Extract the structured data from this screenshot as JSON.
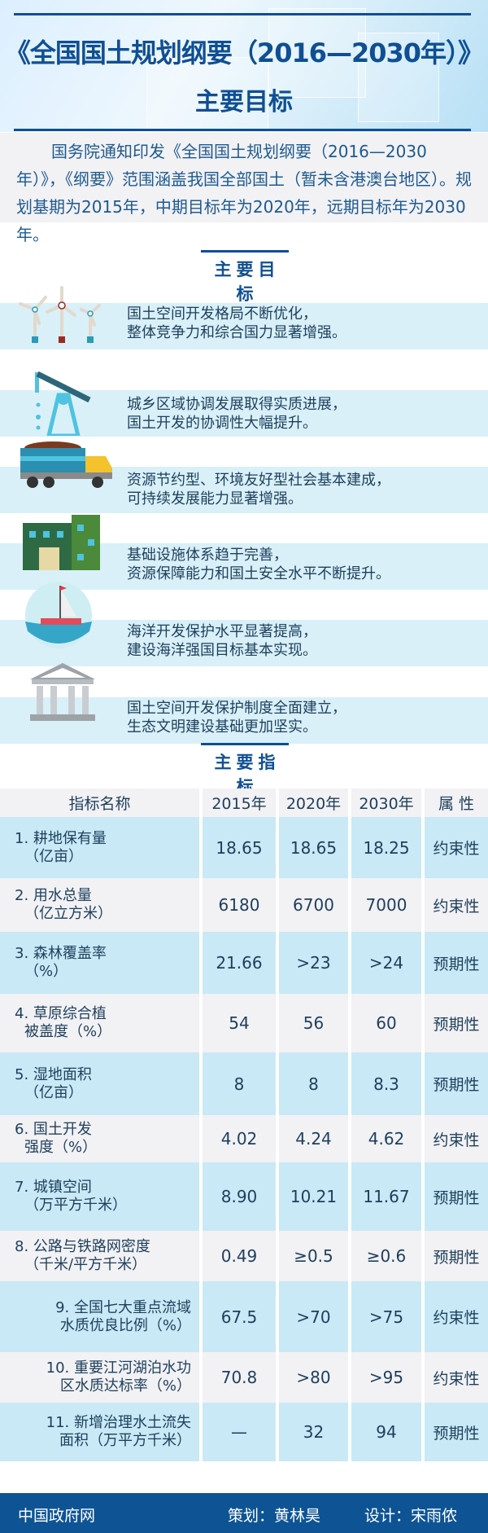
{
  "header": {
    "title": "《全国国土规划纲要（2016—2030年）》",
    "subtitle": "主要目标"
  },
  "intro": "国务院通知印发《全国国土规划纲要（2016—2030年）》，《纲要》范围涵盖我国全部国土（暂未含港澳台地区）。规划基期为2015年，中期目标年为2020年，远期目标年为2030年。",
  "goals_section": {
    "title": "主要目标"
  },
  "goals": [
    {
      "icon": "wind-turbine-icon",
      "line1": "国土空间开发格局不断优化，",
      "line2": "整体竞争力和综合国力显著增强。"
    },
    {
      "icon": "oil-pump-icon",
      "line1": "城乡区域协调发展取得实质进展，",
      "line2": "国土开发的协调性大幅提升。"
    },
    {
      "icon": "truck-icon",
      "line1": "资源节约型、环境友好型社会基本建成，",
      "line2": "可持续发展能力显著增强。"
    },
    {
      "icon": "factory-icon",
      "line1": "基础设施体系趋于完善，",
      "line2": "资源保障能力和国土安全水平不断提升。"
    },
    {
      "icon": "sailboat-icon",
      "line1": "海洋开发保护水平显著提高，",
      "line2": "建设海洋强国目标基本实现。"
    },
    {
      "icon": "government-building-icon",
      "line1": "国土空间开发保护制度全面建立，",
      "line2": "生态文明建设基础更加坚实。"
    }
  ],
  "indicators_section": {
    "title": "主要指标"
  },
  "table": {
    "headers": [
      "指标名称",
      "2015年",
      "2020年",
      "2030年",
      "属 性"
    ],
    "rows": [
      {
        "name1": "1. 耕地保有量",
        "name2": "（亿亩）",
        "v2015": "18.65",
        "v2020": "18.65",
        "v2030": "18.25",
        "attr": "约束性"
      },
      {
        "name1": "2. 用水总量",
        "name2": "（亿立方米）",
        "v2015": "6180",
        "v2020": "6700",
        "v2030": "7000",
        "attr": "约束性"
      },
      {
        "name1": "3. 森林覆盖率",
        "name2": "（%）",
        "v2015": "21.66",
        "v2020": ">23",
        "v2030": ">24",
        "attr": "预期性"
      },
      {
        "name1": "4. 草原综合植",
        "name2": "被盖度（%）",
        "v2015": "54",
        "v2020": "56",
        "v2030": "60",
        "attr": "预期性"
      },
      {
        "name1": "5. 湿地面积",
        "name2": "（亿亩）",
        "v2015": "8",
        "v2020": "8",
        "v2030": "8.3",
        "attr": "预期性"
      },
      {
        "name1": "6. 国土开发",
        "name2": "强度（%）",
        "v2015": "4.02",
        "v2020": "4.24",
        "v2030": "4.62",
        "attr": "约束性"
      },
      {
        "name1": "7. 城镇空间",
        "name2": "（万平方千米）",
        "v2015": "8.90",
        "v2020": "10.21",
        "v2030": "11.67",
        "attr": "预期性"
      },
      {
        "name1": "8. 公路与铁路网密度",
        "name2": "（千米/平方千米）",
        "v2015": "0.49",
        "v2020": "≥0.5",
        "v2030": "≥0.6",
        "attr": "预期性"
      },
      {
        "name1": "9. 全国七大重点流域",
        "name2": "水质优良比例（%）",
        "v2015": "67.5",
        "v2020": ">70",
        "v2030": ">75",
        "attr": "约束性"
      },
      {
        "name1": "10. 重要江河湖泊水功",
        "name2": "区水质达标率（%）",
        "v2015": "70.8",
        "v2020": ">80",
        "v2030": ">95",
        "attr": "约束性"
      },
      {
        "name1": "11. 新增治理水土流失",
        "name2": "面积（万平方千米）",
        "v2015": "—",
        "v2020": "32",
        "v2030": "94",
        "attr": "预期性"
      }
    ]
  },
  "footer": {
    "source": "中国政府网",
    "planner": "策划：黄林昊",
    "designer": "设计：宋雨侬"
  },
  "colors": {
    "brand_blue": "#0f4f93",
    "band_blue": "#d9f0f9",
    "row_blue": "#c8e9f5",
    "row_grey": "#f2f1f4"
  }
}
